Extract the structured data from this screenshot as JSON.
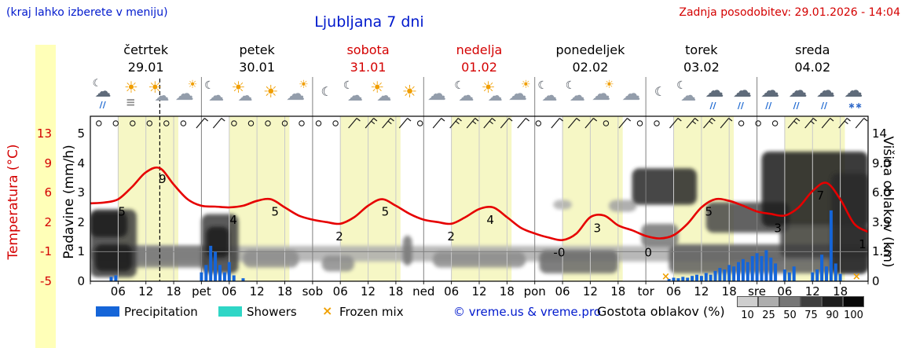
{
  "header": {
    "hint": "(kraj lahko izberete v meniju)",
    "title": "Ljubljana 7 dni",
    "updated": "Zadnja posodobitev: 29.01.2026 - 14:04"
  },
  "days": [
    {
      "name": "četrtek",
      "date": "29.01",
      "weekend": false
    },
    {
      "name": "petek",
      "date": "30.01",
      "weekend": false
    },
    {
      "name": "sobota",
      "date": "31.01",
      "weekend": true
    },
    {
      "name": "nedelja",
      "date": "01.02",
      "weekend": true
    },
    {
      "name": "ponedeljek",
      "date": "02.02",
      "weekend": false
    },
    {
      "name": "torek",
      "date": "03.02",
      "weekend": false
    },
    {
      "name": "sreda",
      "date": "04.02",
      "weekend": false
    }
  ],
  "axes": {
    "temp_label": "Temperatura (°C)",
    "temp_ticks": [
      "13",
      "9",
      "6",
      "2",
      "-1",
      "-5"
    ],
    "precip_label": "Padavine (mm/h)",
    "precip_ticks": [
      "5",
      "4",
      "3",
      "2",
      "1",
      "0"
    ],
    "cloud_label": "Višina oblakov (km)",
    "cloud_ticks": [
      "14",
      "9.0",
      "6.0",
      "3.5",
      "1.5",
      "0"
    ],
    "x_ticks": [
      {
        "t": 6,
        "l": "06"
      },
      {
        "t": 12,
        "l": "12"
      },
      {
        "t": 18,
        "l": "18"
      },
      {
        "t": 24,
        "l": "pet"
      },
      {
        "t": 30,
        "l": "06"
      },
      {
        "t": 36,
        "l": "12"
      },
      {
        "t": 42,
        "l": "18"
      },
      {
        "t": 48,
        "l": "sob"
      },
      {
        "t": 54,
        "l": "06"
      },
      {
        "t": 60,
        "l": "12"
      },
      {
        "t": 66,
        "l": "18"
      },
      {
        "t": 72,
        "l": "ned"
      },
      {
        "t": 78,
        "l": "06"
      },
      {
        "t": 84,
        "l": "12"
      },
      {
        "t": 90,
        "l": "18"
      },
      {
        "t": 96,
        "l": "pon"
      },
      {
        "t": 102,
        "l": "06"
      },
      {
        "t": 108,
        "l": "12"
      },
      {
        "t": 114,
        "l": "18"
      },
      {
        "t": 120,
        "l": "tor"
      },
      {
        "t": 126,
        "l": "06"
      },
      {
        "t": 132,
        "l": "12"
      },
      {
        "t": 138,
        "l": "18"
      },
      {
        "t": 144,
        "l": "sre"
      },
      {
        "t": 150,
        "l": "06"
      },
      {
        "t": 156,
        "l": "12"
      },
      {
        "t": 162,
        "l": "18"
      }
    ]
  },
  "symbols": {
    "weather_icons": [
      "moon-rain",
      "sun-fog",
      "sun-cloud",
      "cloud-sun",
      "moon-cloud",
      "sun-cloud",
      "sun",
      "cloud-sun",
      "moon",
      "moon-cloud",
      "sun-cloud",
      "sun",
      "cloud",
      "moon-cloud",
      "sun-cloud",
      "cloud-sun",
      "moon-cloud",
      "moon-cloud",
      "cloud-sun",
      "cloud",
      "moon",
      "moon-cloud",
      "cloud-rain",
      "cloud-rain",
      "cloud-rain",
      "cloud-rain",
      "cloud-rain",
      "cloud-snow"
    ],
    "wind": [
      0,
      0,
      0,
      0,
      0,
      0,
      1,
      1,
      0,
      0,
      0,
      0,
      0,
      0,
      0,
      1,
      2,
      2,
      1,
      0,
      1,
      2,
      2,
      2,
      1,
      1,
      0,
      1,
      1,
      1,
      0,
      1,
      0,
      0,
      1,
      2,
      2,
      1,
      0,
      0,
      0,
      2,
      2,
      1,
      2,
      1
    ]
  },
  "chart_data": [
    {
      "type": "line",
      "name": "temperature",
      "unit": "°C",
      "t_start": 0,
      "t_step": 3,
      "values": [
        4.5,
        4.6,
        5.0,
        6.5,
        8.3,
        8.8,
        6.8,
        5.0,
        4.2,
        4.1,
        4.0,
        4.2,
        4.8,
        5.0,
        4.0,
        3.0,
        2.5,
        2.2,
        2.0,
        2.8,
        4.2,
        5.0,
        4.2,
        3.2,
        2.5,
        2.2,
        2.0,
        2.8,
        3.8,
        4.0,
        2.8,
        1.5,
        0.8,
        0.3,
        0.0,
        0.8,
        2.8,
        3.0,
        1.8,
        1.2,
        0.5,
        0.2,
        0.6,
        2.0,
        4.0,
        5.0,
        4.8,
        4.2,
        3.5,
        3.2,
        3.0,
        4.0,
        6.0,
        7.0,
        5.0,
        2.0,
        1.0
      ],
      "labels": [
        {
          "t": 6.8,
          "text": "5"
        },
        {
          "t": 15.6,
          "text": "9"
        },
        {
          "t": 30.9,
          "text": "4"
        },
        {
          "t": 39.9,
          "text": "5"
        },
        {
          "t": 53.8,
          "text": "2"
        },
        {
          "t": 63.7,
          "text": "5"
        },
        {
          "t": 77.9,
          "text": "2"
        },
        {
          "t": 86.4,
          "text": "4"
        },
        {
          "t": 101.3,
          "text": "-0"
        },
        {
          "t": 109.5,
          "text": "3"
        },
        {
          "t": 120.5,
          "text": "0"
        },
        {
          "t": 133.6,
          "text": "5"
        },
        {
          "t": 148.5,
          "text": "3"
        },
        {
          "t": 157.7,
          "text": "7"
        },
        {
          "t": 166.8,
          "text": "1"
        }
      ],
      "axis_range_c": [
        -5,
        13
      ]
    },
    {
      "type": "bar",
      "name": "precipitation",
      "unit": "mm/h",
      "points": [
        [
          4.5,
          0.15
        ],
        [
          5.5,
          0.2
        ],
        [
          24,
          0.3
        ],
        [
          25,
          0.55
        ],
        [
          26,
          1.2
        ],
        [
          27,
          1.0
        ],
        [
          28,
          0.55
        ],
        [
          29,
          0.3
        ],
        [
          30,
          0.65
        ],
        [
          31,
          0.2
        ],
        [
          33,
          0.1
        ],
        [
          125,
          0.08
        ],
        [
          126,
          0.12
        ],
        [
          127,
          0.1
        ],
        [
          128,
          0.15
        ],
        [
          129,
          0.12
        ],
        [
          130,
          0.18
        ],
        [
          131,
          0.22
        ],
        [
          132,
          0.18
        ],
        [
          133,
          0.28
        ],
        [
          134,
          0.22
        ],
        [
          135,
          0.35
        ],
        [
          136,
          0.45
        ],
        [
          137,
          0.4
        ],
        [
          138,
          0.55
        ],
        [
          139,
          0.5
        ],
        [
          140,
          0.65
        ],
        [
          141,
          0.75
        ],
        [
          142,
          0.65
        ],
        [
          143,
          0.85
        ],
        [
          144,
          0.95
        ],
        [
          145,
          0.85
        ],
        [
          146,
          1.05
        ],
        [
          147,
          0.8
        ],
        [
          148,
          0.6
        ],
        [
          150,
          0.4
        ],
        [
          151,
          0.3
        ],
        [
          152,
          0.5
        ],
        [
          156,
          0.3
        ],
        [
          157,
          0.4
        ],
        [
          158,
          0.9
        ],
        [
          159,
          0.5
        ],
        [
          160,
          2.4
        ],
        [
          161,
          0.6
        ],
        [
          162,
          0.25
        ]
      ]
    },
    {
      "type": "scatter",
      "name": "frozen_mix",
      "points_t": [
        124.3,
        165.5
      ]
    },
    {
      "type": "heatmap",
      "name": "cloud_cover",
      "unit": "%",
      "regions": [
        [
          0,
          168,
          1.0,
          1.9,
          25
        ],
        [
          8,
          26,
          0.7,
          1.9,
          50
        ],
        [
          33,
          45,
          0.7,
          1.6,
          40
        ],
        [
          50,
          57,
          0.5,
          1.3,
          40
        ],
        [
          67.5,
          69.5,
          0.8,
          2.6,
          50
        ],
        [
          74,
          94,
          0.7,
          1.5,
          40
        ],
        [
          97,
          114,
          0.4,
          1.6,
          55
        ],
        [
          100,
          104,
          4.6,
          5.4,
          25
        ],
        [
          112,
          118,
          4.4,
          5.4,
          30
        ],
        [
          0,
          10,
          0.2,
          4.6,
          75
        ],
        [
          0,
          8,
          2.5,
          4.4,
          90
        ],
        [
          1,
          9,
          0.5,
          2.0,
          90
        ],
        [
          24,
          32,
          0.4,
          4.2,
          75
        ],
        [
          25,
          30,
          1.2,
          3.2,
          90
        ],
        [
          117,
          131,
          5.0,
          8.5,
          85
        ],
        [
          119,
          127,
          1.8,
          3.4,
          50
        ],
        [
          125,
          168,
          0.4,
          2.0,
          60
        ],
        [
          133,
          151,
          2.8,
          5.2,
          70
        ],
        [
          145,
          168,
          3.2,
          11.0,
          90
        ],
        [
          149,
          168,
          1.2,
          3.4,
          75
        ],
        [
          160,
          168,
          0.4,
          8.0,
          85
        ]
      ]
    },
    {
      "type": "line",
      "name": "current_time_marker",
      "t": 15.0
    }
  ],
  "legend": {
    "precipitation": "Precipitation",
    "showers": "Showers",
    "frozen": "Frozen mix",
    "frozen_symbol": "×",
    "copyright": "© vreme.us & vreme.pro",
    "cloud_title": "Gostota oblakov (%)",
    "scale": [
      "10",
      "25",
      "50",
      "75",
      "90",
      "100"
    ],
    "scale_values": [
      10,
      25,
      50,
      75,
      90,
      100
    ]
  },
  "colors": {
    "accent_blue": "#0019cd",
    "alert_red": "#d40000",
    "temp_curve": "#e60000",
    "precip": "#1565d8",
    "showers": "#2fd6c6",
    "frozen": "#f0a000",
    "day_band": "#f6f7c5",
    "left_strip": "#ffffb8"
  }
}
